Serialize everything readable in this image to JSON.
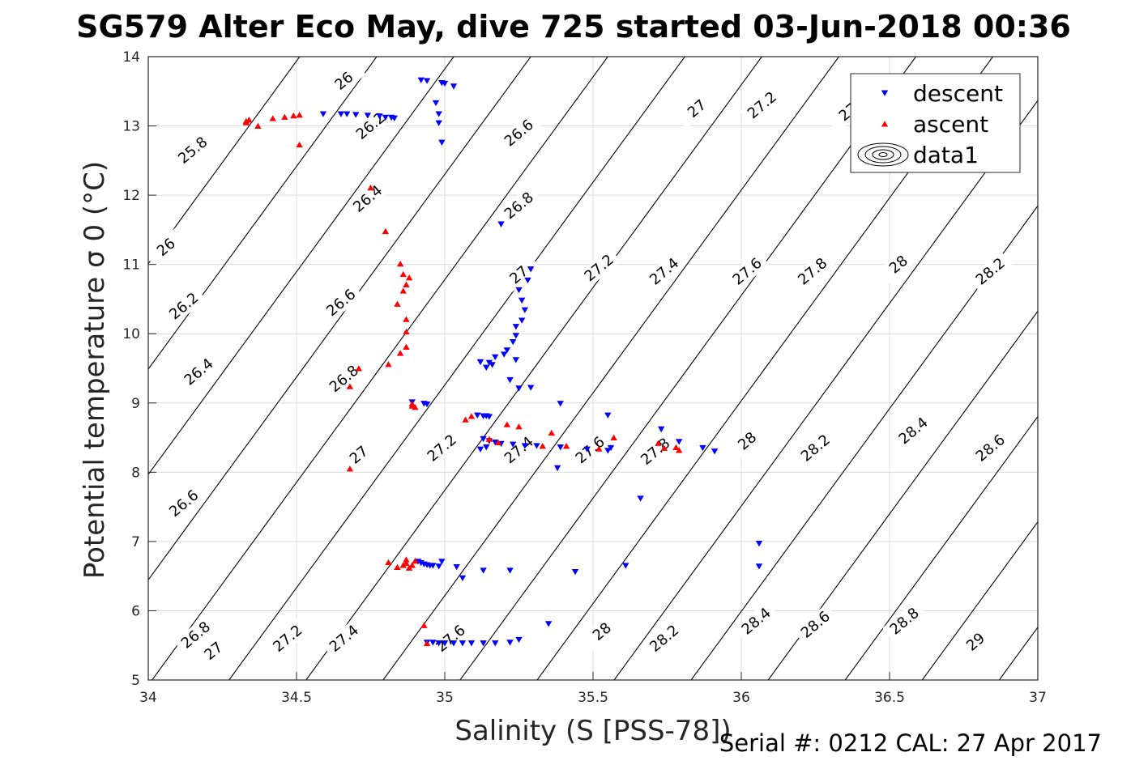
{
  "title": "SG579 Alter Eco May, dive 725 started 03-Jun-2018 00:36",
  "footer_note": "Serial #: 0212  CAL: 27 Apr 2017",
  "chart_data": {
    "type": "scatter",
    "title": "SG579 Alter Eco May, dive 725 started 03-Jun-2018 00:36",
    "xlabel": "Salinity (S [PSS-78])",
    "ylabel": "Potential temperature σ 0 (°C)",
    "xlim": [
      34,
      37
    ],
    "ylim": [
      5,
      14
    ],
    "x_ticks": [
      "34",
      "34.5",
      "35",
      "35.5",
      "36",
      "36.5",
      "37"
    ],
    "y_ticks": [
      "5",
      "6",
      "7",
      "8",
      "9",
      "10",
      "11",
      "12",
      "13",
      "14"
    ],
    "grid": true,
    "legend_position": "top-right",
    "legend": [
      "descent",
      "ascent",
      "data1"
    ],
    "series": [
      {
        "name": "descent",
        "marker": "triangle-down",
        "color": "#0000ff",
        "points": [
          [
            34.59,
            13.17
          ],
          [
            34.65,
            13.17
          ],
          [
            34.67,
            13.17
          ],
          [
            34.7,
            13.16
          ],
          [
            34.74,
            13.15
          ],
          [
            34.78,
            13.14
          ],
          [
            34.8,
            13.12
          ],
          [
            34.82,
            13.12
          ],
          [
            34.83,
            13.11
          ],
          [
            34.92,
            13.66
          ],
          [
            34.94,
            13.65
          ],
          [
            34.97,
            13.33
          ],
          [
            34.98,
            13.17
          ],
          [
            34.98,
            13.04
          ],
          [
            34.99,
            12.76
          ],
          [
            34.99,
            13.62
          ],
          [
            35.0,
            13.61
          ],
          [
            35.03,
            13.57
          ],
          [
            35.19,
            11.58
          ],
          [
            35.29,
            10.93
          ],
          [
            35.28,
            10.77
          ],
          [
            35.25,
            10.63
          ],
          [
            35.26,
            10.48
          ],
          [
            35.27,
            10.34
          ],
          [
            35.26,
            10.19
          ],
          [
            35.24,
            10.1
          ],
          [
            35.24,
            9.97
          ],
          [
            35.23,
            9.88
          ],
          [
            35.21,
            9.76
          ],
          [
            35.2,
            9.7
          ],
          [
            35.17,
            9.66
          ],
          [
            35.24,
            9.62
          ],
          [
            35.15,
            9.58
          ],
          [
            35.12,
            9.59
          ],
          [
            35.16,
            9.55
          ],
          [
            35.14,
            9.51
          ],
          [
            35.22,
            9.33
          ],
          [
            35.25,
            9.21
          ],
          [
            35.29,
            9.22
          ],
          [
            35.39,
            8.99
          ],
          [
            34.89,
            9.01
          ],
          [
            34.93,
            8.99
          ],
          [
            34.94,
            8.98
          ],
          [
            35.11,
            8.82
          ],
          [
            35.14,
            8.81
          ],
          [
            35.15,
            8.8
          ],
          [
            35.13,
            8.81
          ],
          [
            35.55,
            8.82
          ],
          [
            35.73,
            8.62
          ],
          [
            35.13,
            8.48
          ],
          [
            35.15,
            8.45
          ],
          [
            35.17,
            8.43
          ],
          [
            35.19,
            8.41
          ],
          [
            35.23,
            8.4
          ],
          [
            35.27,
            8.38
          ],
          [
            35.31,
            8.38
          ],
          [
            35.39,
            8.36
          ],
          [
            35.48,
            8.33
          ],
          [
            35.55,
            8.31
          ],
          [
            35.56,
            8.35
          ],
          [
            35.12,
            8.33
          ],
          [
            35.14,
            8.36
          ],
          [
            35.38,
            8.06
          ],
          [
            35.79,
            8.44
          ],
          [
            35.87,
            8.35
          ],
          [
            35.91,
            8.3
          ],
          [
            35.66,
            7.62
          ],
          [
            36.06,
            6.97
          ],
          [
            36.06,
            6.64
          ],
          [
            34.91,
            6.71
          ],
          [
            34.92,
            6.69
          ],
          [
            34.93,
            6.67
          ],
          [
            34.94,
            6.66
          ],
          [
            34.95,
            6.65
          ],
          [
            34.96,
            6.65
          ],
          [
            34.98,
            6.64
          ],
          [
            34.99,
            6.71
          ],
          [
            35.04,
            6.63
          ],
          [
            35.06,
            6.47
          ],
          [
            35.13,
            6.58
          ],
          [
            35.22,
            6.58
          ],
          [
            35.44,
            6.56
          ],
          [
            35.61,
            6.65
          ],
          [
            35.35,
            5.81
          ],
          [
            35.25,
            5.58
          ],
          [
            34.94,
            5.54
          ],
          [
            34.96,
            5.54
          ],
          [
            34.98,
            5.53
          ],
          [
            35.0,
            5.53
          ],
          [
            35.03,
            5.53
          ],
          [
            35.06,
            5.53
          ],
          [
            35.09,
            5.53
          ],
          [
            35.13,
            5.53
          ],
          [
            35.17,
            5.53
          ],
          [
            35.22,
            5.54
          ]
        ]
      },
      {
        "name": "ascent",
        "marker": "triangle-up",
        "color": "#ff0000",
        "points": [
          [
            34.33,
            13.05
          ],
          [
            34.33,
            13.07
          ],
          [
            34.34,
            13.09
          ],
          [
            34.37,
            13.0
          ],
          [
            34.42,
            13.11
          ],
          [
            34.46,
            13.13
          ],
          [
            34.49,
            13.15
          ],
          [
            34.51,
            13.16
          ],
          [
            34.51,
            12.73
          ],
          [
            34.75,
            12.11
          ],
          [
            34.8,
            11.48
          ],
          [
            34.85,
            11.01
          ],
          [
            34.86,
            10.86
          ],
          [
            34.88,
            10.81
          ],
          [
            34.87,
            10.71
          ],
          [
            34.86,
            10.62
          ],
          [
            34.84,
            10.43
          ],
          [
            34.87,
            10.21
          ],
          [
            34.87,
            10.03
          ],
          [
            34.87,
            9.81
          ],
          [
            34.85,
            9.72
          ],
          [
            34.81,
            9.56
          ],
          [
            34.71,
            9.5
          ],
          [
            34.68,
            9.24
          ],
          [
            34.68,
            8.05
          ],
          [
            34.89,
            8.99
          ],
          [
            34.89,
            8.96
          ],
          [
            34.9,
            8.94
          ],
          [
            35.07,
            8.76
          ],
          [
            35.09,
            8.81
          ],
          [
            35.21,
            8.69
          ],
          [
            35.25,
            8.66
          ],
          [
            35.36,
            8.57
          ],
          [
            35.15,
            8.48
          ],
          [
            35.18,
            8.43
          ],
          [
            35.33,
            8.38
          ],
          [
            35.41,
            8.38
          ],
          [
            35.52,
            8.34
          ],
          [
            35.57,
            8.5
          ],
          [
            35.72,
            8.42
          ],
          [
            35.74,
            8.35
          ],
          [
            35.78,
            8.36
          ],
          [
            35.79,
            8.32
          ],
          [
            34.81,
            6.7
          ],
          [
            34.84,
            6.63
          ],
          [
            34.86,
            6.66
          ],
          [
            34.87,
            6.69
          ],
          [
            34.87,
            6.74
          ],
          [
            34.88,
            6.62
          ],
          [
            34.89,
            6.66
          ],
          [
            34.9,
            6.72
          ],
          [
            34.93,
            5.79
          ],
          [
            34.94,
            5.53
          ]
        ]
      }
    ],
    "contours": [
      {
        "value": 25.8,
        "label": "25.8"
      },
      {
        "value": 26.0,
        "label": "26"
      },
      {
        "value": 26.2,
        "label": "26.2"
      },
      {
        "value": 26.4,
        "label": "26.4"
      },
      {
        "value": 26.6,
        "label": "26.6"
      },
      {
        "value": 26.8,
        "label": "26.8"
      },
      {
        "value": 27.0,
        "label": "27"
      },
      {
        "value": 27.2,
        "label": "27.2"
      },
      {
        "value": 27.4,
        "label": "27.4"
      },
      {
        "value": 27.6,
        "label": "27.6"
      },
      {
        "value": 27.8,
        "label": "27.8"
      },
      {
        "value": 28.0,
        "label": "28"
      },
      {
        "value": 28.2,
        "label": "28.2"
      },
      {
        "value": 28.4,
        "label": "28.4"
      },
      {
        "value": 28.6,
        "label": "28.6"
      },
      {
        "value": 28.8,
        "label": "28.8"
      },
      {
        "value": 29.0,
        "label": "29"
      }
    ],
    "contour_labels": [
      {
        "text": "25.8",
        "x": 34.15,
        "y": 12.65
      },
      {
        "text": "26",
        "x": 34.66,
        "y": 13.65
      },
      {
        "text": "26",
        "x": 34.06,
        "y": 11.25
      },
      {
        "text": "26.2",
        "x": 34.75,
        "y": 13.0
      },
      {
        "text": "26.2",
        "x": 34.12,
        "y": 10.4
      },
      {
        "text": "26.4",
        "x": 34.74,
        "y": 11.95
      },
      {
        "text": "26.4",
        "x": 34.17,
        "y": 9.45
      },
      {
        "text": "26.6",
        "x": 35.25,
        "y": 12.9
      },
      {
        "text": "26.6",
        "x": 34.65,
        "y": 10.45
      },
      {
        "text": "26.6",
        "x": 34.12,
        "y": 7.55
      },
      {
        "text": "26.8",
        "x": 35.25,
        "y": 11.85
      },
      {
        "text": "26.8",
        "x": 34.66,
        "y": 9.35
      },
      {
        "text": "26.8",
        "x": 34.16,
        "y": 5.65
      },
      {
        "text": "27",
        "x": 35.85,
        "y": 13.25
      },
      {
        "text": "27",
        "x": 35.25,
        "y": 10.85
      },
      {
        "text": "27",
        "x": 34.71,
        "y": 8.25
      },
      {
        "text": "27",
        "x": 34.22,
        "y": 5.42
      },
      {
        "text": "27.2",
        "x": 36.07,
        "y": 13.3
      },
      {
        "text": "27.2",
        "x": 35.52,
        "y": 10.95
      },
      {
        "text": "27.2",
        "x": 34.99,
        "y": 8.35
      },
      {
        "text": "27.2",
        "x": 34.47,
        "y": 5.6
      },
      {
        "text": "27",
        "x": 36.36,
        "y": 13.2
      },
      {
        "text": "27.4",
        "x": 35.74,
        "y": 10.9
      },
      {
        "text": "27.4",
        "x": 35.25,
        "y": 8.32
      },
      {
        "text": "27.4",
        "x": 34.66,
        "y": 5.6
      },
      {
        "text": "27.6",
        "x": 36.02,
        "y": 10.9
      },
      {
        "text": "27.6",
        "x": 35.49,
        "y": 8.32
      },
      {
        "text": "27.6",
        "x": 35.02,
        "y": 5.6
      },
      {
        "text": "27.8",
        "x": 36.24,
        "y": 10.9
      },
      {
        "text": "27.8",
        "x": 35.71,
        "y": 8.3
      },
      {
        "text": "28",
        "x": 36.53,
        "y": 11.0
      },
      {
        "text": "28",
        "x": 36.02,
        "y": 8.45
      },
      {
        "text": "28",
        "x": 35.53,
        "y": 5.7
      },
      {
        "text": "28.2",
        "x": 36.84,
        "y": 10.9
      },
      {
        "text": "28.2",
        "x": 36.25,
        "y": 8.35
      },
      {
        "text": "28.2",
        "x": 35.74,
        "y": 5.6
      },
      {
        "text": "28.4",
        "x": 36.58,
        "y": 8.6
      },
      {
        "text": "28.4",
        "x": 36.05,
        "y": 5.85
      },
      {
        "text": "28.6",
        "x": 36.84,
        "y": 8.35
      },
      {
        "text": "28.6",
        "x": 36.25,
        "y": 5.8
      },
      {
        "text": "28.8",
        "x": 36.55,
        "y": 5.85
      },
      {
        "text": "29",
        "x": 36.79,
        "y": 5.55
      }
    ]
  }
}
